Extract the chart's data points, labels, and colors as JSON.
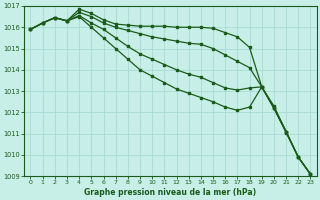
{
  "title": "Graphe pression niveau de la mer (hPa)",
  "background_color": "#c8eee8",
  "grid_color": "#a0d8d0",
  "line_color": "#1a5c1a",
  "xlim": [
    -0.5,
    23.5
  ],
  "ylim": [
    1009,
    1017
  ],
  "yticks": [
    1009,
    1010,
    1011,
    1012,
    1013,
    1014,
    1015,
    1016,
    1017
  ],
  "xticks": [
    0,
    1,
    2,
    3,
    4,
    5,
    6,
    7,
    8,
    9,
    10,
    11,
    12,
    13,
    14,
    15,
    16,
    17,
    18,
    19,
    20,
    21,
    22,
    23
  ],
  "series": [
    [
      1015.9,
      1016.2,
      1016.45,
      1016.3,
      1016.85,
      1016.65,
      1016.35,
      1016.15,
      1016.1,
      1016.05,
      1016.05,
      1016.05,
      1016.0,
      1016.0,
      1016.0,
      1015.95,
      1015.75,
      1015.55,
      1015.05,
      1013.2,
      1012.2,
      1011.05,
      1009.9,
      1009.1
    ],
    [
      1015.9,
      1016.2,
      1016.45,
      1016.3,
      1016.7,
      1016.5,
      1016.2,
      1016.0,
      1015.85,
      1015.7,
      1015.55,
      1015.45,
      1015.35,
      1015.25,
      1015.2,
      1015.0,
      1014.7,
      1014.4,
      1014.1,
      1013.2,
      1012.2,
      1011.1,
      1009.9,
      1009.1
    ],
    [
      1015.9,
      1016.2,
      1016.45,
      1016.3,
      1016.55,
      1016.2,
      1015.9,
      1015.5,
      1015.1,
      1014.75,
      1014.5,
      1014.25,
      1014.0,
      1013.8,
      1013.65,
      1013.4,
      1013.15,
      1013.05,
      1013.15,
      1013.2,
      1012.2,
      1011.1,
      1009.9,
      1009.1
    ],
    [
      1015.9,
      1016.2,
      1016.45,
      1016.3,
      1016.5,
      1016.0,
      1015.5,
      1015.0,
      1014.5,
      1014.0,
      1013.7,
      1013.4,
      1013.1,
      1012.9,
      1012.7,
      1012.5,
      1012.25,
      1012.1,
      1012.25,
      1013.2,
      1012.3,
      1011.1,
      1009.9,
      1009.1
    ]
  ]
}
